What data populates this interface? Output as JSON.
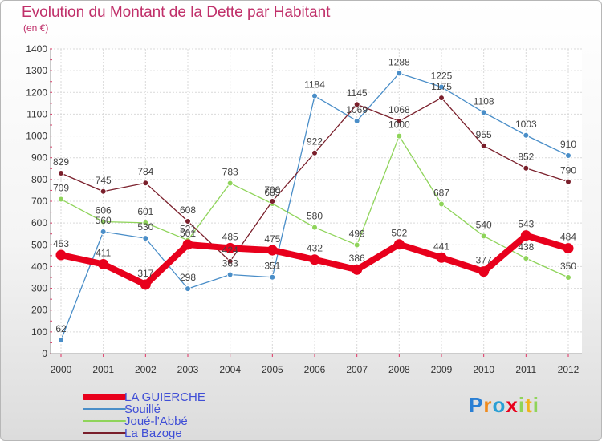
{
  "header": {
    "title": "Evolution du Montant de la Dette par Habitant",
    "unit": "(en €)"
  },
  "chart_data": {
    "type": "line",
    "title": "Evolution du Montant de la Dette par Habitant",
    "ylabel": "(en €)",
    "xlabel": "",
    "ylim": [
      0,
      1400
    ],
    "yticks": [
      0,
      100,
      200,
      300,
      400,
      500,
      600,
      700,
      800,
      900,
      1000,
      1100,
      1200,
      1300,
      1400
    ],
    "categories": [
      "2000",
      "2001",
      "2002",
      "2003",
      "2004",
      "2005",
      "2006",
      "2007",
      "2008",
      "2009",
      "2010",
      "2011",
      "2012"
    ],
    "grid": true,
    "legend_position": "bottom-left",
    "series": [
      {
        "name": "Souillé",
        "color": "#4a8ec8",
        "values": [
          62,
          560,
          530,
          298,
          363,
          351,
          1184,
          1069,
          1288,
          1225,
          1108,
          1003,
          910
        ]
      },
      {
        "name": "Joué-l'Abbé",
        "color": "#8fd45a",
        "values": [
          709,
          606,
          601,
          521,
          783,
          689,
          580,
          499,
          1000,
          687,
          540,
          438,
          350
        ]
      },
      {
        "name": "La Bazoge",
        "color": "#7a1f2b",
        "values": [
          829,
          745,
          784,
          608,
          424,
          700,
          922,
          1145,
          1068,
          1175,
          955,
          852,
          790
        ]
      },
      {
        "name": "LA GUIERCHE",
        "color": "#e8001c",
        "values": [
          453,
          411,
          317,
          501,
          485,
          475,
          432,
          386,
          502,
          441,
          377,
          543,
          484
        ]
      }
    ]
  },
  "legend": {
    "items": [
      {
        "label": "LA GUIERCHE",
        "color": "#e8001c"
      },
      {
        "label": "Souillé",
        "color": "#4a8ec8"
      },
      {
        "label": "Joué-l'Abbé",
        "color": "#8fd45a"
      },
      {
        "label": "La Bazoge",
        "color": "#7a1f2b"
      }
    ]
  },
  "brand": {
    "letters": [
      "P",
      "r",
      "o",
      "x",
      "i",
      "t",
      "i"
    ],
    "colors": [
      "#2a7fd4",
      "#f08a1c",
      "#2a9fd4",
      "#e8001c",
      "#8fd45a",
      "#f0b41c",
      "#8fd45a"
    ]
  }
}
